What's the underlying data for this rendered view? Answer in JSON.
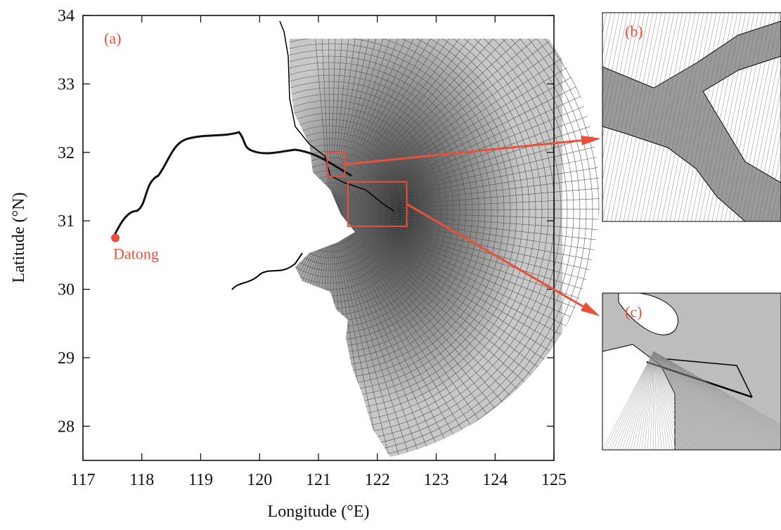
{
  "chart_data": {
    "type": "map",
    "x_label": "Longitude (°E)",
    "y_label": "Latitude (°N)",
    "xlim": [
      117,
      125
    ],
    "ylim": [
      27.5,
      34
    ],
    "xticks": [
      117,
      118,
      119,
      120,
      121,
      122,
      123,
      124,
      125
    ],
    "yticks": [
      28,
      29,
      30,
      31,
      32,
      33,
      34
    ],
    "panel_label": "(a)",
    "highlight_color": "#e8503a",
    "markers": [
      {
        "name": "Datong",
        "lon": 117.55,
        "lat": 30.75
      }
    ],
    "insets": [
      {
        "label": "(b)",
        "xlim": [
          121.15,
          121.45
        ],
        "ylim": [
          31.65,
          32.0
        ]
      },
      {
        "label": "(c)",
        "xlim": [
          121.5,
          122.5
        ],
        "ylim": [
          30.92,
          31.57
        ]
      }
    ]
  }
}
